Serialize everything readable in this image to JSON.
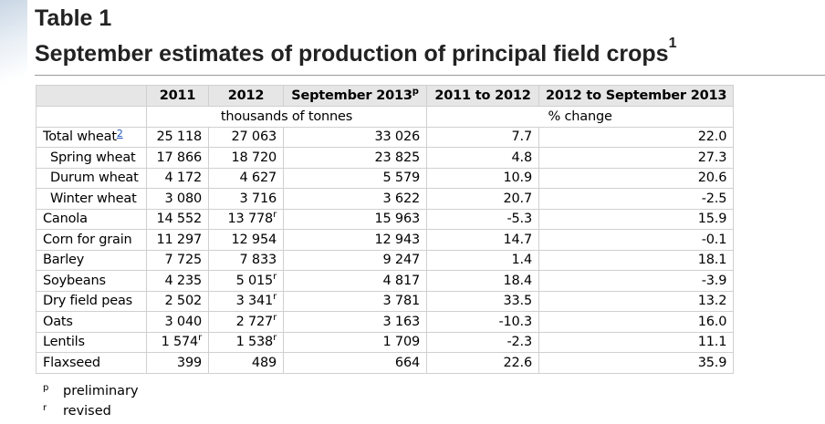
{
  "header": {
    "table_label": "Table 1",
    "title": "September estimates of production of principal field crops",
    "title_footnote": "1"
  },
  "table": {
    "columns": [
      "",
      "2011",
      "2012",
      "September 2013",
      "2011 to 2012",
      "2012 to September 2013"
    ],
    "col3_marker": "p",
    "units": {
      "production": "thousands of tonnes",
      "change": "% change"
    },
    "rows": [
      {
        "crop": "Total wheat",
        "footnote": "2",
        "indent": false,
        "y2011": "25 118",
        "y2011_mark": "",
        "y2012": "27 063",
        "y2012_mark": "",
        "sep2013": "33 026",
        "chg1": "7.7",
        "chg2": "22.0"
      },
      {
        "crop": "Spring wheat",
        "footnote": "",
        "indent": true,
        "y2011": "17 866",
        "y2011_mark": "",
        "y2012": "18 720",
        "y2012_mark": "",
        "sep2013": "23 825",
        "chg1": "4.8",
        "chg2": "27.3"
      },
      {
        "crop": "Durum wheat",
        "footnote": "",
        "indent": true,
        "y2011": "4 172",
        "y2011_mark": "",
        "y2012": "4 627",
        "y2012_mark": "",
        "sep2013": "5 579",
        "chg1": "10.9",
        "chg2": "20.6"
      },
      {
        "crop": "Winter wheat",
        "footnote": "",
        "indent": true,
        "y2011": "3 080",
        "y2011_mark": "",
        "y2012": "3 716",
        "y2012_mark": "",
        "sep2013": "3 622",
        "chg1": "20.7",
        "chg2": "-2.5"
      },
      {
        "crop": "Canola",
        "footnote": "",
        "indent": false,
        "y2011": "14 552",
        "y2011_mark": "",
        "y2012": "13 778",
        "y2012_mark": "r",
        "sep2013": "15 963",
        "chg1": "-5.3",
        "chg2": "15.9"
      },
      {
        "crop": "Corn for grain",
        "footnote": "",
        "indent": false,
        "y2011": "11 297",
        "y2011_mark": "",
        "y2012": "12 954",
        "y2012_mark": "",
        "sep2013": "12 943",
        "chg1": "14.7",
        "chg2": "-0.1"
      },
      {
        "crop": "Barley",
        "footnote": "",
        "indent": false,
        "y2011": "7 725",
        "y2011_mark": "",
        "y2012": "7 833",
        "y2012_mark": "",
        "sep2013": "9 247",
        "chg1": "1.4",
        "chg2": "18.1"
      },
      {
        "crop": "Soybeans",
        "footnote": "",
        "indent": false,
        "y2011": "4 235",
        "y2011_mark": "",
        "y2012": "5 015",
        "y2012_mark": "r",
        "sep2013": "4 817",
        "chg1": "18.4",
        "chg2": "-3.9"
      },
      {
        "crop": "Dry field peas",
        "footnote": "",
        "indent": false,
        "y2011": "2 502",
        "y2011_mark": "",
        "y2012": "3 341",
        "y2012_mark": "r",
        "sep2013": "3 781",
        "chg1": "33.5",
        "chg2": "13.2"
      },
      {
        "crop": "Oats",
        "footnote": "",
        "indent": false,
        "y2011": "3 040",
        "y2011_mark": "",
        "y2012": "2 727",
        "y2012_mark": "r",
        "sep2013": "3 163",
        "chg1": "-10.3",
        "chg2": "16.0"
      },
      {
        "crop": "Lentils",
        "footnote": "",
        "indent": false,
        "y2011": "1 574",
        "y2011_mark": "r",
        "y2012": "1 538",
        "y2012_mark": "r",
        "sep2013": "1 709",
        "chg1": "-2.3",
        "chg2": "11.1"
      },
      {
        "crop": "Flaxseed",
        "footnote": "",
        "indent": false,
        "y2011": "399",
        "y2011_mark": "",
        "y2012": "489",
        "y2012_mark": "",
        "sep2013": "664",
        "chg1": "22.6",
        "chg2": "35.9"
      }
    ]
  },
  "notes": [
    {
      "symbol": "p",
      "text": "preliminary"
    },
    {
      "symbol": "r",
      "text": "revised"
    }
  ]
}
